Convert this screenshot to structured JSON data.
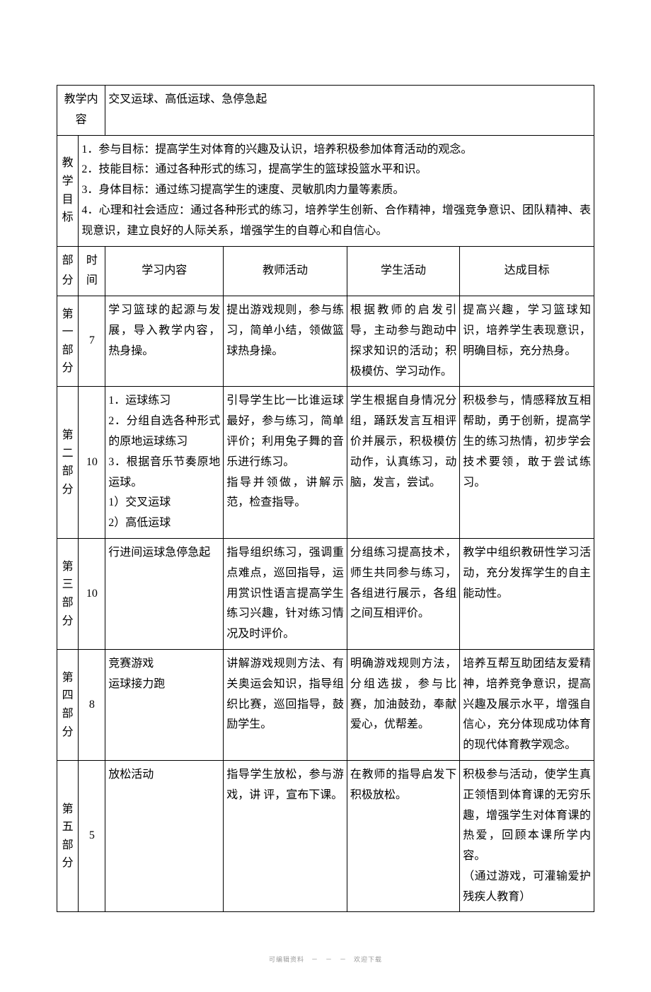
{
  "header": {
    "content_label": "教学内容",
    "content_text": "交叉运球、高低运球、急停急起",
    "goals_label": "教学目标",
    "goals_text": "1．参与目标：提高学生对体育的兴趣及认识，培养积极参加体育活动的观念。\n2．技能目标：通过各种形式的练习，提高学生的篮球投篮水平和识。\n3．身体目标：通过练习提高学生的速度、灵敏肌肉力量等素质。\n4．心理和社会适应：通过各种形式的练习，培养学生创新、合作精神，增强竞争意识、团队精神、表现意识，建立良好的人际关系，增强学生的自尊心和自信心。"
  },
  "columns": {
    "part": "部分",
    "time": "时间",
    "content": "学习内容",
    "teacher": "教师活动",
    "student": "学生活动",
    "goal": "达成目标"
  },
  "rows": [
    {
      "part": "第一部分",
      "time": "7",
      "content": "学习篮球的起源与发展，导入教学内容，热身操。",
      "teacher": "提出游戏规则，参与练习，简单小结，领做篮球热身操。",
      "student": "根据教师的启发引导，主动参与跑动中探求知识的活动；积极模仿、学习动作。",
      "goal": "提高兴趣，学习篮球知识，培养学生表现意识，明确目标，充分热身。"
    },
    {
      "part": "第二部分",
      "time": "10",
      "content": "1．运球练习\n2．分组自选各种形式的原地运球练习\n3．根据音乐节奏原地运球。\n1）交叉运球\n2）高低运球",
      "teacher": "引导学生比一比谁运球最好，参与练习，简单评价；利用兔子舞的音乐进行练习。\n指导并领做，讲解示范，检查指导。",
      "student": "学生根据自身情况分组，踊跃发言互相评价并展示，积极模仿动作，认真练习，动脑，发言，尝试。",
      "goal": "积极参与，情感释放互相帮助，勇于创新，提高学生的练习热情，初步学会技术要领，敢于尝试练习。"
    },
    {
      "part": "第三部分",
      "time": "10",
      "content": "行进间运球急停急起",
      "teacher": "指导组织练习，强调重点难点，巡回指导，运用赏识性语言提高学生练习兴趣，针对练习情况及时评价。",
      "student": "分组练习提高技术，师生共同参与练习，各组进行展示，各组之间互相评价。",
      "goal": "教学中组织教研性学习活动，充分发挥学生的自主能动性。"
    },
    {
      "part": "第四部分",
      "time": "8",
      "content": "竞赛游戏\n运球接力跑",
      "teacher": "讲解游戏规则方法、有关奥运会知识，指导组织比赛，巡回指导，鼓励学生。",
      "student": "明确游戏规则方法，分组选拔，参与比赛，加油鼓劲，奉献爱心，优帮差。",
      "goal": "培养互帮互助团结友爱精神，培养竞争意识，提高兴趣及展示水平，增强自信心，充分体现成功体育的现代体育教学观念。"
    },
    {
      "part": "第五部分",
      "time": "5",
      "content": "放松活动",
      "teacher": "指导学生放松，参与游戏，讲 评，宣布下课。",
      "student": "在教师的指导启发下积极放松。",
      "goal": "积极参与活动，使学生真正领悟到体育课的无穷乐趣，增强学生对体育课的热爱，回顾本课所学内容。\n（通过游戏，可灌输爱护残疾人教育）"
    }
  ],
  "footer": "可编辑资料　－　－　－　欢迎下载"
}
